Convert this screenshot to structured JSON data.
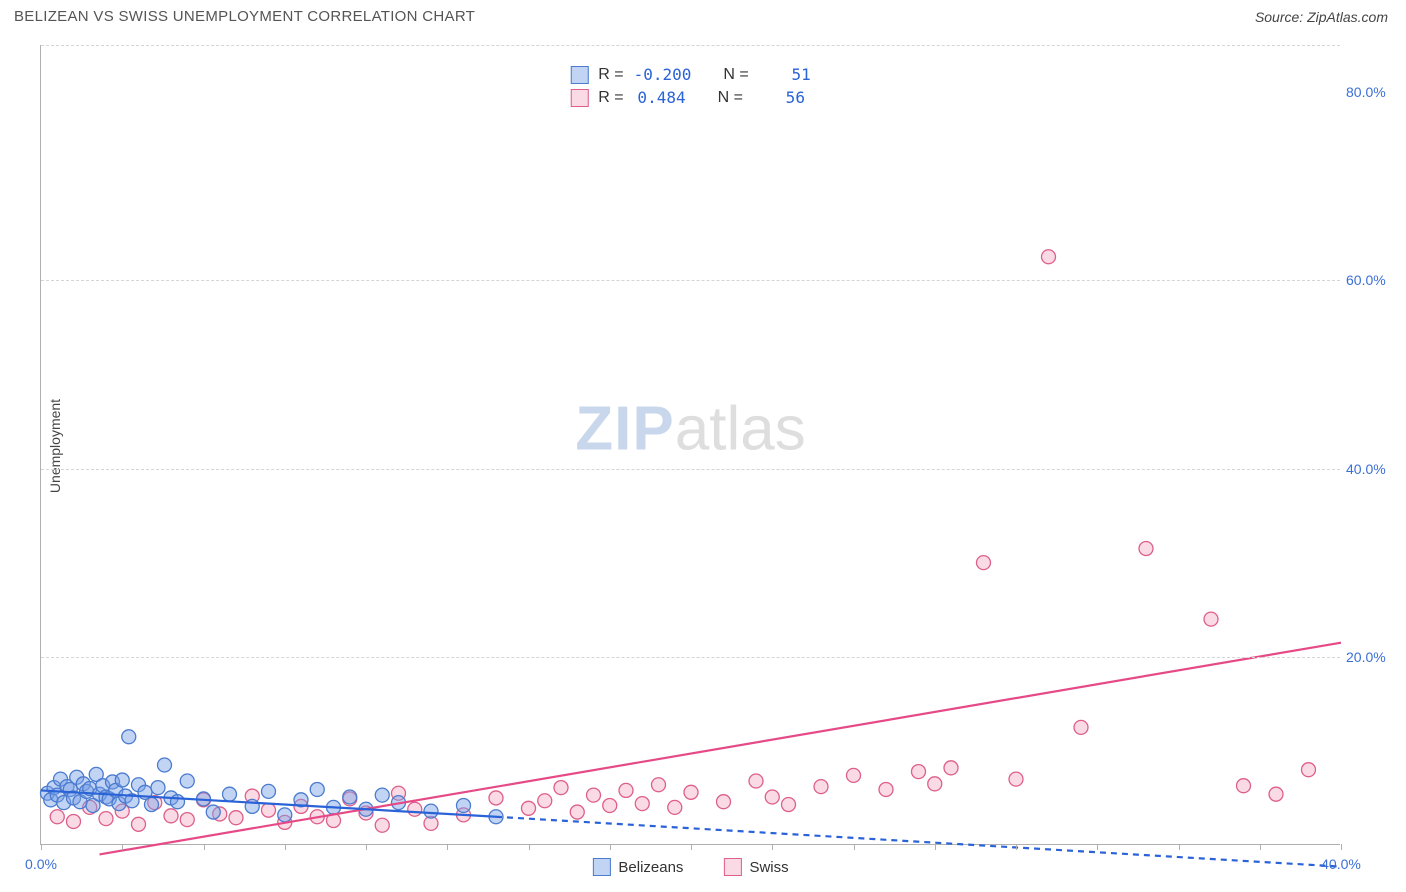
{
  "header": {
    "title": "BELIZEAN VS SWISS UNEMPLOYMENT CORRELATION CHART",
    "source": "Source: ZipAtlas.com"
  },
  "watermark": {
    "zip": "ZIP",
    "atlas": "atlas"
  },
  "chart": {
    "type": "scatter",
    "y_axis_label": "Unemployment",
    "xlim": [
      0,
      40
    ],
    "ylim": [
      0,
      85
    ],
    "x_ticks": [
      0,
      2.5,
      5,
      7.5,
      10,
      12.5,
      15,
      17.5,
      20,
      22.5,
      25,
      27.5,
      30,
      32.5,
      35,
      37.5,
      40
    ],
    "x_tick_labels": {
      "0": "0.0%",
      "40": "40.0%"
    },
    "y_ticks": [
      20,
      40,
      60,
      80
    ],
    "y_tick_labels": [
      "20.0%",
      "40.0%",
      "60.0%",
      "80.0%"
    ],
    "grid_y": [
      20,
      40,
      60,
      85
    ],
    "grid_color": "#d5d5d5",
    "background_color": "#ffffff",
    "marker_radius": 7,
    "marker_stroke_width": 1.3,
    "line_width": 2.2,
    "dash_pattern": "6,5",
    "series": {
      "belizeans": {
        "label": "Belizeans",
        "fill": "rgba(120,160,230,0.45)",
        "stroke": "#4a7bcf",
        "line_color": "#2a62d8",
        "R": "-0.200",
        "N": "51",
        "trend_solid": {
          "x1": 0,
          "y1": 5.8,
          "x2": 14,
          "y2": 3.0
        },
        "trend_dashed": {
          "x1": 14,
          "y1": 3.0,
          "x2": 40,
          "y2": -2.3
        },
        "points": [
          [
            0.2,
            5.5
          ],
          [
            0.3,
            4.8
          ],
          [
            0.4,
            6.1
          ],
          [
            0.5,
            5.3
          ],
          [
            0.6,
            7.0
          ],
          [
            0.7,
            4.5
          ],
          [
            0.8,
            6.2
          ],
          [
            0.9,
            5.9
          ],
          [
            1.0,
            5.0
          ],
          [
            1.1,
            7.2
          ],
          [
            1.2,
            4.6
          ],
          [
            1.3,
            6.5
          ],
          [
            1.4,
            5.7
          ],
          [
            1.5,
            6.0
          ],
          [
            1.6,
            4.2
          ],
          [
            1.7,
            7.5
          ],
          [
            1.8,
            5.4
          ],
          [
            1.9,
            6.3
          ],
          [
            2.0,
            5.1
          ],
          [
            2.1,
            4.9
          ],
          [
            2.2,
            6.7
          ],
          [
            2.3,
            5.8
          ],
          [
            2.4,
            4.4
          ],
          [
            2.5,
            6.9
          ],
          [
            2.6,
            5.2
          ],
          [
            2.7,
            11.5
          ],
          [
            2.8,
            4.7
          ],
          [
            3.0,
            6.4
          ],
          [
            3.2,
            5.6
          ],
          [
            3.4,
            4.3
          ],
          [
            3.6,
            6.1
          ],
          [
            3.8,
            8.5
          ],
          [
            4.0,
            5.0
          ],
          [
            4.2,
            4.6
          ],
          [
            4.5,
            6.8
          ],
          [
            5.0,
            4.9
          ],
          [
            5.3,
            3.5
          ],
          [
            5.8,
            5.4
          ],
          [
            6.5,
            4.1
          ],
          [
            7.0,
            5.7
          ],
          [
            7.5,
            3.2
          ],
          [
            8.0,
            4.8
          ],
          [
            8.5,
            5.9
          ],
          [
            9.0,
            4.0
          ],
          [
            9.5,
            5.1
          ],
          [
            10.0,
            3.8
          ],
          [
            10.5,
            5.3
          ],
          [
            11.0,
            4.5
          ],
          [
            12.0,
            3.6
          ],
          [
            13.0,
            4.2
          ],
          [
            14.0,
            3.0
          ]
        ]
      },
      "swiss": {
        "label": "Swiss",
        "fill": "rgba(240,150,180,0.35)",
        "stroke": "#dd5f8a",
        "line_color": "#e54a87",
        "R": "0.484",
        "N": "56",
        "trend_solid": {
          "x1": 1.8,
          "y1": -1.0,
          "x2": 40,
          "y2": 21.5
        },
        "points": [
          [
            0.5,
            3.0
          ],
          [
            1.0,
            2.5
          ],
          [
            1.5,
            4.0
          ],
          [
            2.0,
            2.8
          ],
          [
            2.5,
            3.6
          ],
          [
            3.0,
            2.2
          ],
          [
            3.5,
            4.5
          ],
          [
            4.0,
            3.1
          ],
          [
            4.5,
            2.7
          ],
          [
            5.0,
            4.8
          ],
          [
            5.5,
            3.3
          ],
          [
            6.0,
            2.9
          ],
          [
            6.5,
            5.2
          ],
          [
            7.0,
            3.7
          ],
          [
            7.5,
            2.4
          ],
          [
            8.0,
            4.1
          ],
          [
            8.5,
            3.0
          ],
          [
            9.0,
            2.6
          ],
          [
            9.5,
            4.9
          ],
          [
            10.0,
            3.4
          ],
          [
            10.5,
            2.1
          ],
          [
            11.0,
            5.5
          ],
          [
            11.5,
            3.8
          ],
          [
            12.0,
            2.3
          ],
          [
            13.0,
            3.2
          ],
          [
            14.0,
            5.0
          ],
          [
            15.0,
            3.9
          ],
          [
            15.5,
            4.7
          ],
          [
            16.0,
            6.1
          ],
          [
            16.5,
            3.5
          ],
          [
            17.0,
            5.3
          ],
          [
            17.5,
            4.2
          ],
          [
            18.0,
            5.8
          ],
          [
            18.5,
            4.4
          ],
          [
            19.0,
            6.4
          ],
          [
            19.5,
            4.0
          ],
          [
            20.0,
            5.6
          ],
          [
            21.0,
            4.6
          ],
          [
            22.0,
            6.8
          ],
          [
            22.5,
            5.1
          ],
          [
            23.0,
            4.3
          ],
          [
            24.0,
            6.2
          ],
          [
            25.0,
            7.4
          ],
          [
            26.0,
            5.9
          ],
          [
            27.0,
            7.8
          ],
          [
            27.5,
            6.5
          ],
          [
            28.0,
            8.2
          ],
          [
            29.0,
            30.0
          ],
          [
            30.0,
            7.0
          ],
          [
            31.0,
            62.5
          ],
          [
            32.0,
            12.5
          ],
          [
            34.0,
            31.5
          ],
          [
            36.0,
            24.0
          ],
          [
            37.0,
            6.3
          ],
          [
            38.0,
            5.4
          ],
          [
            39.0,
            8.0
          ]
        ]
      }
    },
    "stats_labels": {
      "R": "R =",
      "N": "N ="
    },
    "legend_items": [
      "belizeans",
      "swiss"
    ]
  },
  "colors": {
    "title_text": "#555555",
    "axis_text": "#444444",
    "tick_text": "#3b6fd6",
    "axis_line": "#b0b0b0"
  }
}
